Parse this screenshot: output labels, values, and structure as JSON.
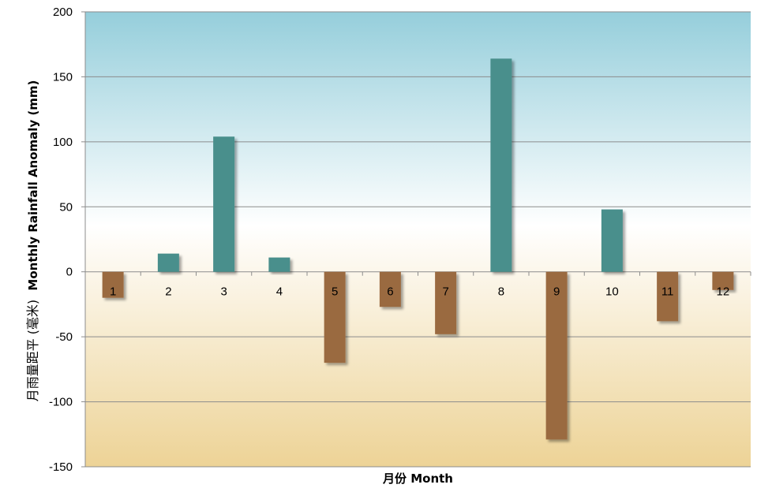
{
  "chart_data": {
    "type": "bar",
    "title": "",
    "xlabel": "月份 Month",
    "ylabel": "月雨量距平 (毫米) Monthly Rainfall Anomaly (mm)",
    "ylabel_zh": "月雨量距平 (毫米)",
    "ylabel_en": "Monthly Rainfall Anomaly (mm)",
    "categories": [
      "1",
      "2",
      "3",
      "4",
      "5",
      "6",
      "7",
      "8",
      "9",
      "10",
      "11",
      "12"
    ],
    "values": [
      -20,
      14,
      104,
      11,
      -70,
      -27,
      -48,
      164,
      -129,
      48,
      -38,
      -14
    ],
    "ylim": [
      -150,
      200
    ],
    "yticks": [
      -150,
      -100,
      -50,
      0,
      50,
      100,
      150,
      200
    ],
    "grid": true,
    "legend": "none",
    "colors": {
      "positive": "#4a8f8c",
      "negative": "#9a6a40",
      "bg_top": "#95cedb",
      "bg_mid": "#ffffff",
      "bg_bottom": "#edd396",
      "grid": "#8c8c8c"
    }
  }
}
